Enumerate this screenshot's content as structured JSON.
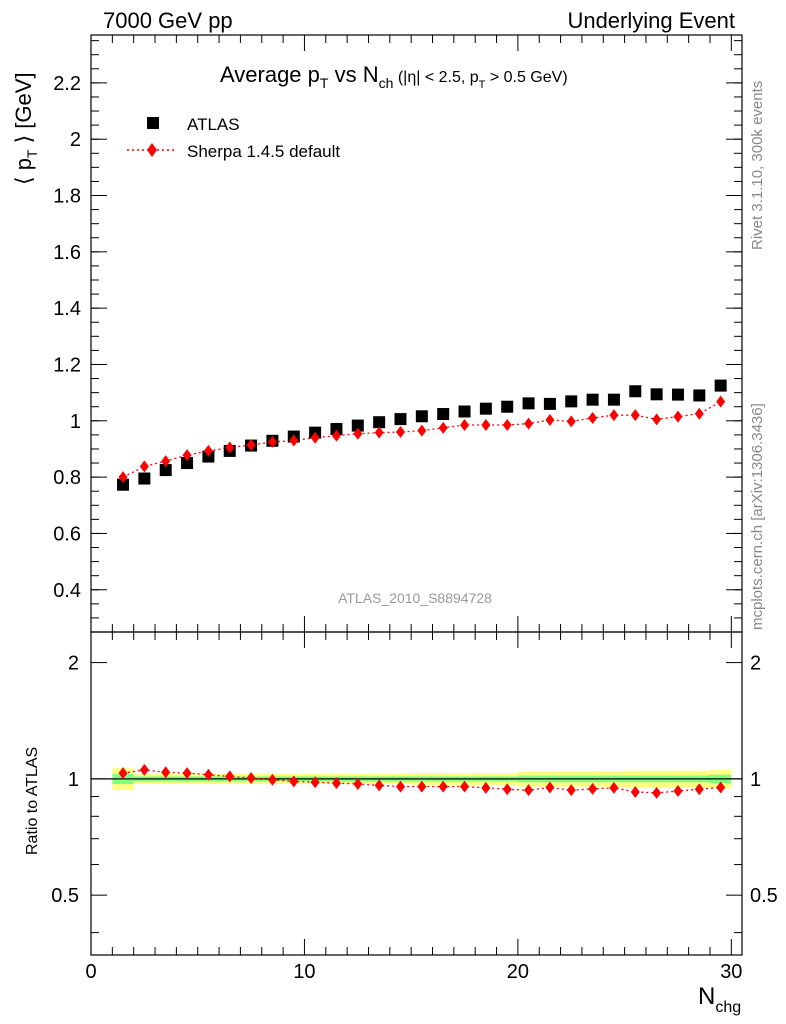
{
  "header": {
    "left": "7000 GeV pp",
    "right": "Underlying Event"
  },
  "side": {
    "rivet": "Rivet 3.1.10,  300k events",
    "mcplots": "mcplots.cern.ch [arXiv:1306.3436]"
  },
  "watermark": "ATLAS_2010_S8894728",
  "title": {
    "main": "Average p",
    "main_sub": "T",
    "vs": " vs N",
    "vs_sub": "ch",
    "cut_open": " (|η| < 2.5, p",
    "cut_sub": "T",
    "cut_close": " > 0.5 GeV)"
  },
  "axes": {
    "ylabel_open": "⟨ p",
    "ylabel_sub": "T",
    "ylabel_close": " ⟩ [GeV]",
    "ratio_ylabel": "Ratio to ATLAS",
    "xlabel": "N",
    "xlabel_sub": "chg"
  },
  "legend": {
    "data": "ATLAS",
    "mc": "Sherpa 1.4.5 default"
  },
  "colors": {
    "data": "#000000",
    "mc": "#ff0000",
    "band_inner": "#80ff80",
    "band_outer": "#ffff80"
  },
  "chart_data": {
    "type": "scatter",
    "main": {
      "xlim": [
        0,
        30.5
      ],
      "ylim": [
        0.25,
        2.37
      ],
      "yticks": [
        0.4,
        0.6,
        0.8,
        1.0,
        1.2,
        1.4,
        1.6,
        1.8,
        2.0,
        2.2
      ],
      "ytick_labels": [
        "0.4",
        "0.6",
        "0.8",
        "1",
        "1.2",
        "1.4",
        "1.6",
        "1.8",
        "2",
        "2.2"
      ]
    },
    "ratio": {
      "ylim": [
        0.35,
        2.4
      ],
      "yticks": [
        0.5,
        1,
        2
      ],
      "ytick_labels": [
        "0.5",
        "1",
        "2"
      ]
    },
    "xticks": [
      0,
      10,
      20,
      30
    ],
    "xtick_labels": [
      "0",
      "10",
      "20",
      "30"
    ],
    "x": [
      1.5,
      2.5,
      3.5,
      4.5,
      5.5,
      6.5,
      7.5,
      8.5,
      9.5,
      10.5,
      11.5,
      12.5,
      13.5,
      14.5,
      15.5,
      16.5,
      17.5,
      18.5,
      19.5,
      20.5,
      21.5,
      22.5,
      23.5,
      24.5,
      25.5,
      26.5,
      27.5,
      28.5,
      29.5
    ],
    "series": [
      {
        "name": "ATLAS",
        "marker": "square",
        "values": [
          0.773,
          0.795,
          0.825,
          0.85,
          0.873,
          0.893,
          0.912,
          0.929,
          0.944,
          0.958,
          0.971,
          0.983,
          0.995,
          1.006,
          1.016,
          1.024,
          1.033,
          1.043,
          1.05,
          1.062,
          1.06,
          1.069,
          1.075,
          1.075,
          1.105,
          1.094,
          1.093,
          1.09,
          1.125
        ]
      },
      {
        "name": "Sherpa 1.4.5 default",
        "marker": "diamond",
        "line": "dotted",
        "values": [
          0.8,
          0.838,
          0.857,
          0.878,
          0.893,
          0.905,
          0.914,
          0.925,
          0.93,
          0.94,
          0.947,
          0.954,
          0.958,
          0.96,
          0.965,
          0.975,
          0.985,
          0.985,
          0.985,
          0.99,
          1.003,
          0.998,
          1.01,
          1.02,
          1.02,
          1.005,
          1.015,
          1.025,
          1.068
        ],
        "ratio": [
          1.035,
          1.055,
          1.04,
          1.035,
          1.025,
          1.015,
          1.005,
          0.995,
          0.985,
          0.98,
          0.975,
          0.97,
          0.962,
          0.955,
          0.955,
          0.955,
          0.955,
          0.948,
          0.94,
          0.935,
          0.95,
          0.935,
          0.942,
          0.948,
          0.925,
          0.92,
          0.93,
          0.94,
          0.95
        ]
      }
    ],
    "band": {
      "edges": [
        1,
        2,
        3,
        4,
        5,
        6,
        7,
        8,
        9,
        10,
        11,
        12,
        13,
        14,
        15,
        16,
        17,
        18,
        19,
        20,
        21,
        22,
        23,
        24,
        25,
        26,
        27,
        28,
        29,
        30
      ],
      "inner": [
        0.03,
        0.015,
        0.015,
        0.015,
        0.015,
        0.015,
        0.015,
        0.015,
        0.015,
        0.015,
        0.015,
        0.015,
        0.015,
        0.015,
        0.015,
        0.015,
        0.015,
        0.015,
        0.015,
        0.02,
        0.02,
        0.02,
        0.02,
        0.02,
        0.02,
        0.02,
        0.02,
        0.02,
        0.025
      ],
      "outer": [
        0.065,
        0.03,
        0.03,
        0.03,
        0.03,
        0.03,
        0.03,
        0.03,
        0.03,
        0.03,
        0.03,
        0.03,
        0.03,
        0.03,
        0.035,
        0.035,
        0.035,
        0.035,
        0.035,
        0.045,
        0.045,
        0.045,
        0.045,
        0.045,
        0.05,
        0.05,
        0.05,
        0.05,
        0.055
      ]
    }
  }
}
